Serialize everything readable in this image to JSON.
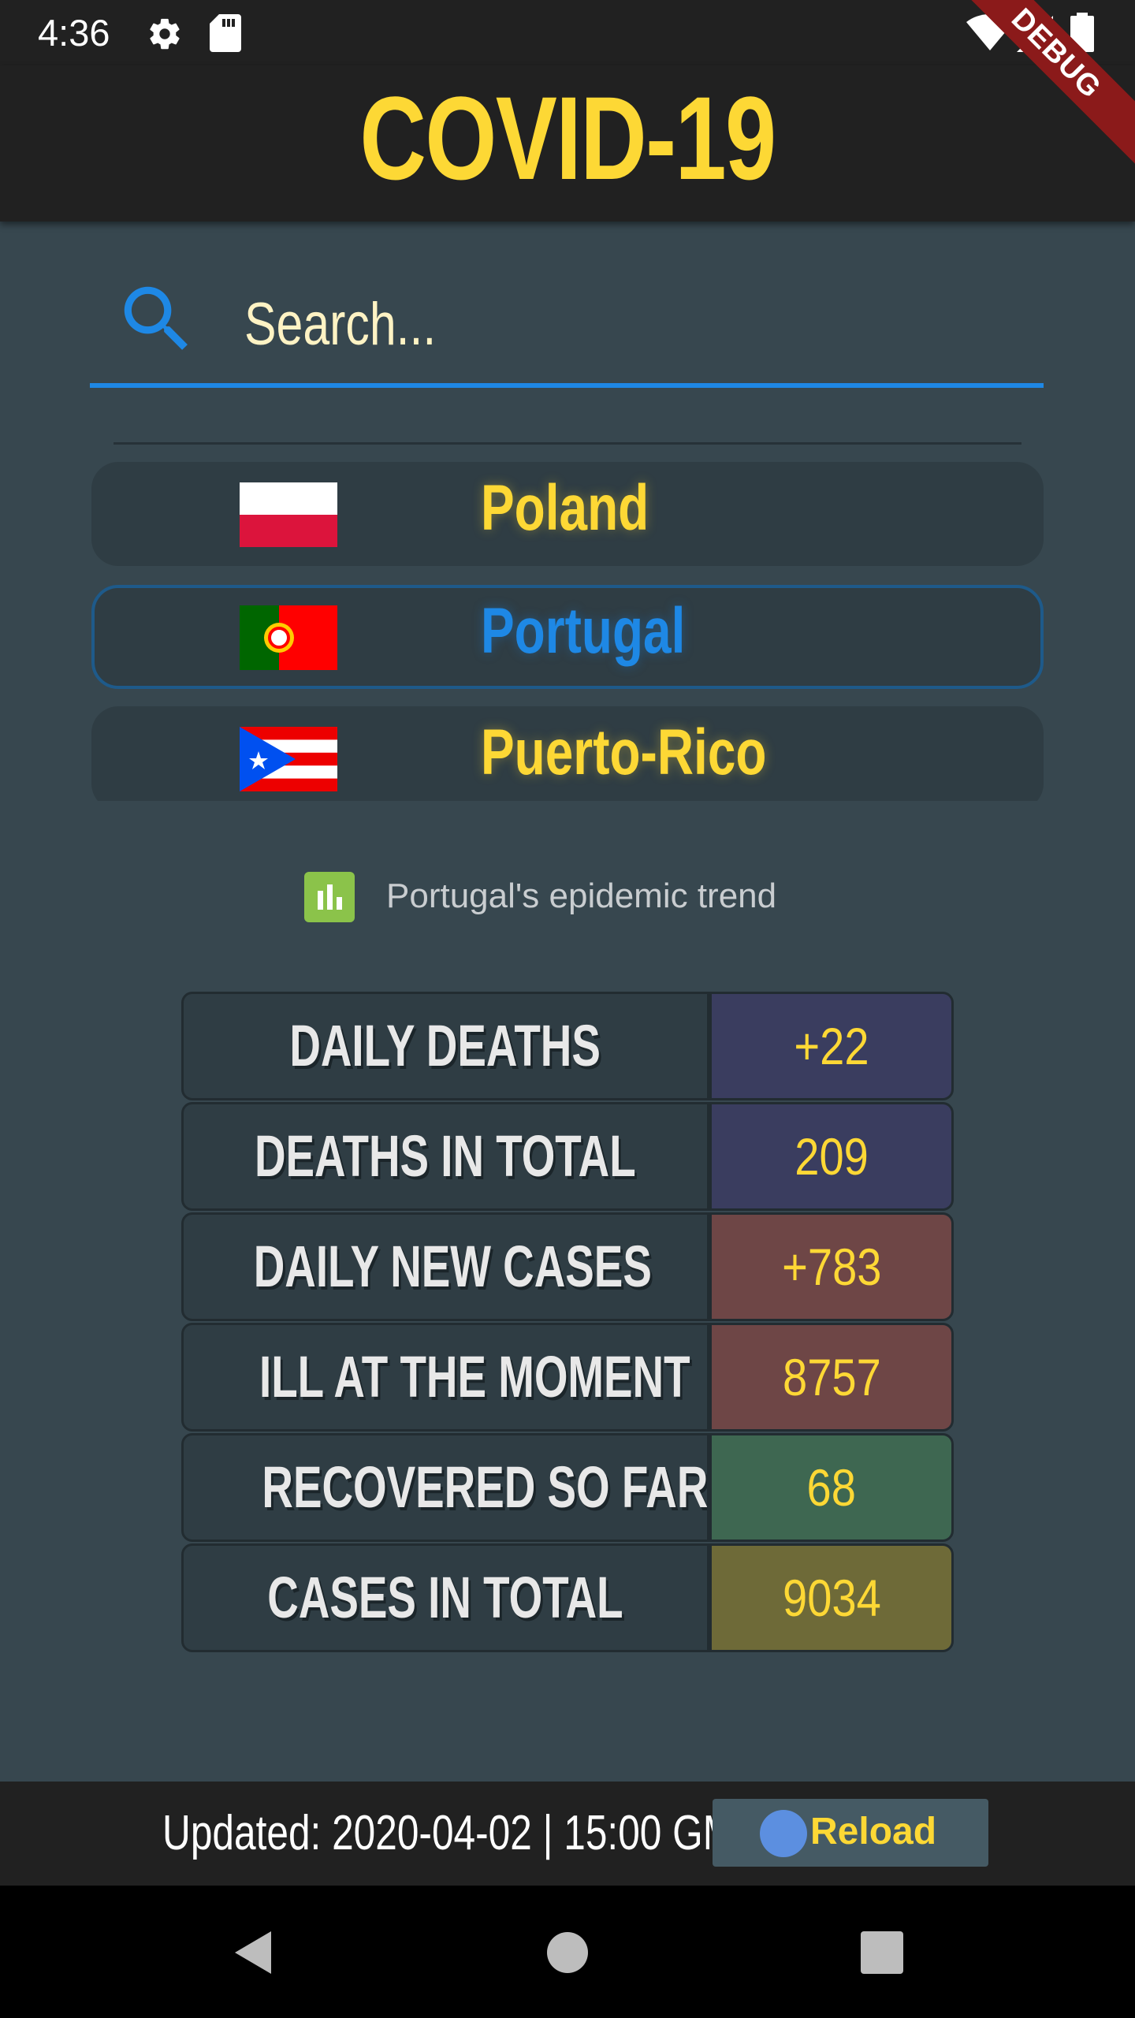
{
  "status_bar": {
    "time": "4:36",
    "icons": [
      "settings-icon",
      "sd-card-icon",
      "wifi-icon",
      "signal-icon",
      "battery-icon"
    ]
  },
  "debug_banner": "DEBUG",
  "app_bar": {
    "title": "COVID-19"
  },
  "search": {
    "placeholder": "Search...",
    "value": ""
  },
  "countries": [
    {
      "name": "Poland",
      "flag": "poland-flag",
      "selected": false
    },
    {
      "name": "Portugal",
      "flag": "portugal-flag",
      "selected": true
    },
    {
      "name": "Puerto-Rico",
      "flag": "puerto-rico-flag",
      "selected": false
    }
  ],
  "trend_link": {
    "label": "Portugal's epidemic trend",
    "icon": "bar-chart-icon"
  },
  "stats": [
    {
      "label": "DAILY DEATHS",
      "value": "+22",
      "color": "#3a3d5f"
    },
    {
      "label": "DEATHS IN TOTAL",
      "value": "209",
      "color": "#3a3d5f"
    },
    {
      "label": "DAILY NEW CASES",
      "value": "+783",
      "color": "#6e4646"
    },
    {
      "label": "ILL AT THE MOMENT",
      "value": "8757",
      "color": "#6e4646"
    },
    {
      "label": "RECOVERED SO FAR",
      "value": "68",
      "color": "#3e6751"
    },
    {
      "label": "CASES IN TOTAL",
      "value": "9034",
      "color": "#6e6a38"
    }
  ],
  "footer": {
    "updated": "Updated: 2020-04-02 | 15:00 GMT",
    "reload_label": "Reload"
  },
  "nav_bar": {
    "buttons": [
      "back-icon",
      "home-icon",
      "recents-icon"
    ]
  },
  "colors": {
    "accent": "#1e88e5",
    "title": "#fdd835",
    "background": "#37474f",
    "bar": "#212121"
  }
}
